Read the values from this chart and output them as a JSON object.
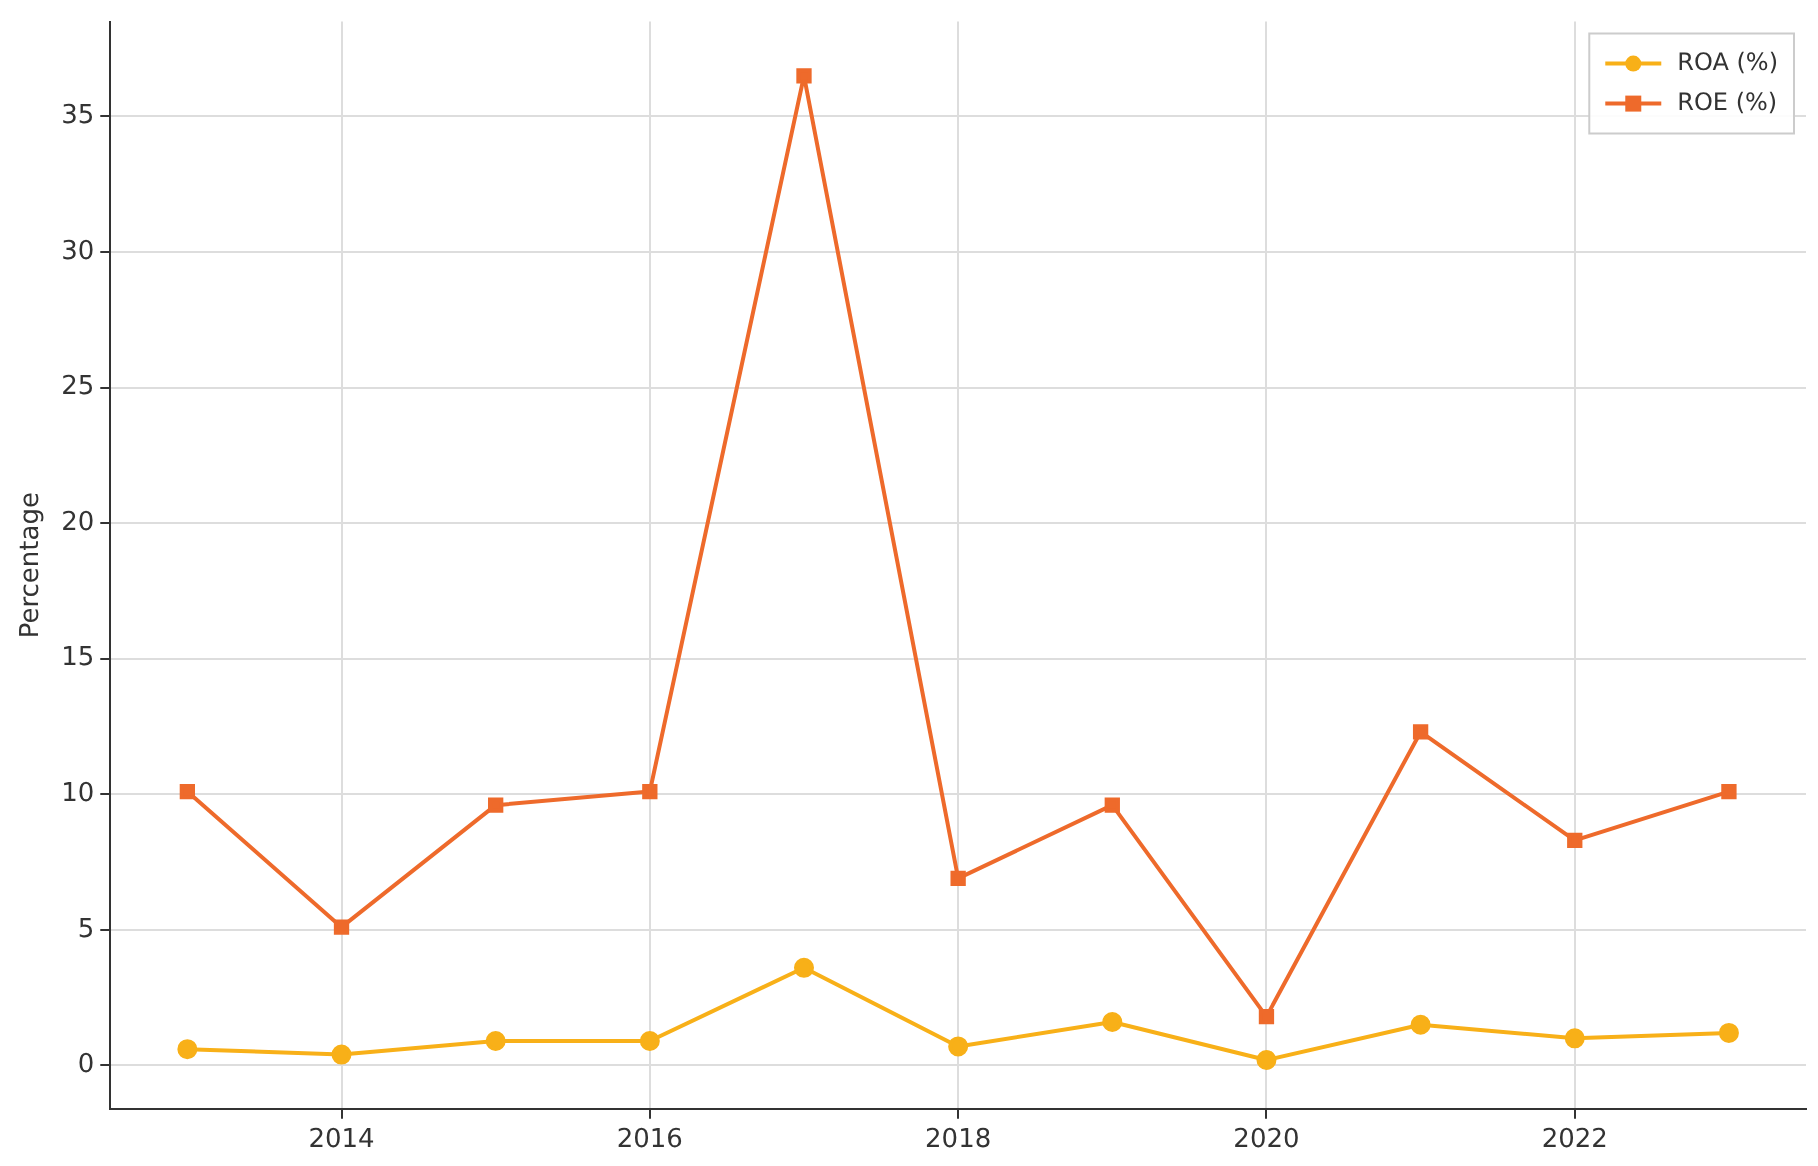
{
  "chart_data": {
    "type": "line",
    "ylabel": "Percentage",
    "x": [
      2013,
      2014,
      2015,
      2016,
      2017,
      2018,
      2019,
      2020,
      2021,
      2022,
      2023
    ],
    "series": [
      {
        "name": "ROA (%)",
        "color": "#f8b018",
        "marker": "circle",
        "values": [
          0.6,
          0.4,
          0.9,
          0.9,
          3.6,
          0.7,
          1.6,
          0.2,
          1.5,
          1.0,
          1.2
        ]
      },
      {
        "name": "ROE (%)",
        "color": "#ee6a2b",
        "marker": "square",
        "values": [
          10.1,
          5.1,
          9.6,
          10.1,
          36.5,
          6.9,
          9.6,
          1.8,
          12.3,
          8.3,
          10.1
        ]
      }
    ],
    "xlim": [
      2012.5,
      2023.5
    ],
    "xticks": [
      2014,
      2016,
      2018,
      2020,
      2022
    ],
    "ylim": [
      -1.6,
      38.5
    ],
    "yticks": [
      0,
      5,
      10,
      15,
      20,
      25,
      30,
      35
    ],
    "grid": true,
    "legend": "top right",
    "line_style": "solid"
  }
}
